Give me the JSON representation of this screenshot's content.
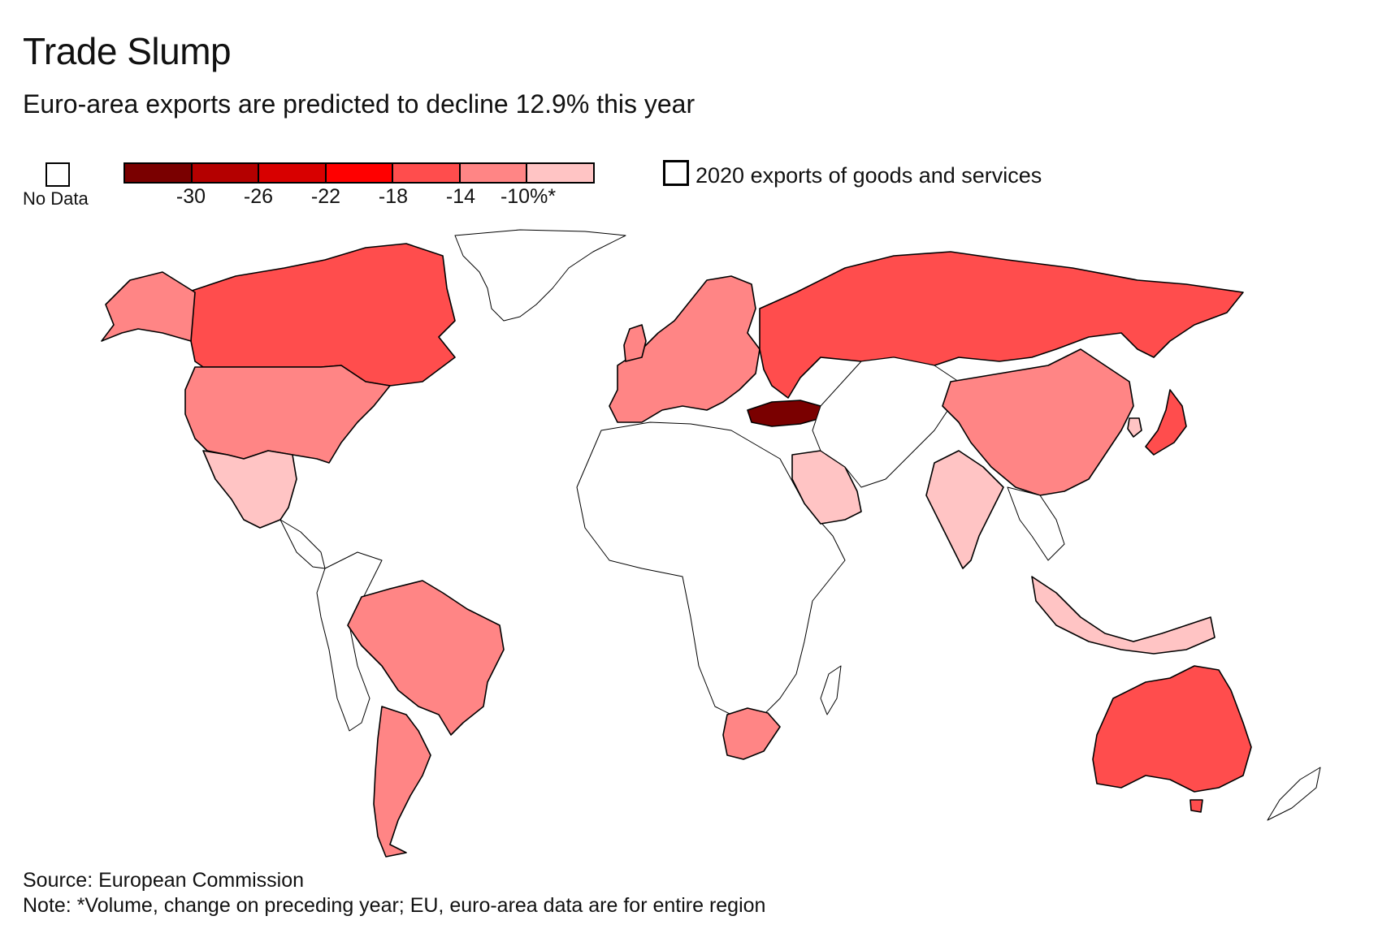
{
  "header": {
    "title": "Trade Slump",
    "subtitle": "Euro-area exports are predicted to decline 12.9% this year"
  },
  "legend": {
    "no_data_label": "No Data",
    "scale_colors": [
      "#7a0000",
      "#b40000",
      "#d80000",
      "#ff0000",
      "#ff4d4d",
      "#ff8585",
      "#ffc4c4"
    ],
    "tick_labels": [
      "-30",
      "-26",
      "-22",
      "-18",
      "-14",
      "-10%*"
    ],
    "highlight_label": "2020 exports of goods and services"
  },
  "footer": {
    "source": "Source: European Commission",
    "note": "Note: *Volume, change on preceding year; EU, euro-area data are for entire region"
  },
  "map_data": {
    "type": "choropleth",
    "metric": "2020 exports of goods and services",
    "regions": [
      {
        "name": "Canada",
        "bin": "-18 to -14"
      },
      {
        "name": "United States",
        "bin": "-14 to -10"
      },
      {
        "name": "Mexico",
        "bin": "-10 and above"
      },
      {
        "name": "Brazil",
        "bin": "-14 to -10"
      },
      {
        "name": "Argentina",
        "bin": "-14 to -10"
      },
      {
        "name": "Russia",
        "bin": "-18 to -14"
      },
      {
        "name": "China",
        "bin": "-14 to -10"
      },
      {
        "name": "India",
        "bin": "-10 and above"
      },
      {
        "name": "Japan",
        "bin": "-18 to -14"
      },
      {
        "name": "South Korea",
        "bin": "-10 and above"
      },
      {
        "name": "Indonesia",
        "bin": "-10 and above"
      },
      {
        "name": "Australia",
        "bin": "-18 to -14"
      },
      {
        "name": "Turkey",
        "bin": "-30 and below"
      },
      {
        "name": "Saudi Arabia",
        "bin": "-10 and above"
      },
      {
        "name": "South Africa",
        "bin": "-14 to -10"
      },
      {
        "name": "Europe (EU)",
        "bin": "-14 to -10"
      }
    ]
  }
}
